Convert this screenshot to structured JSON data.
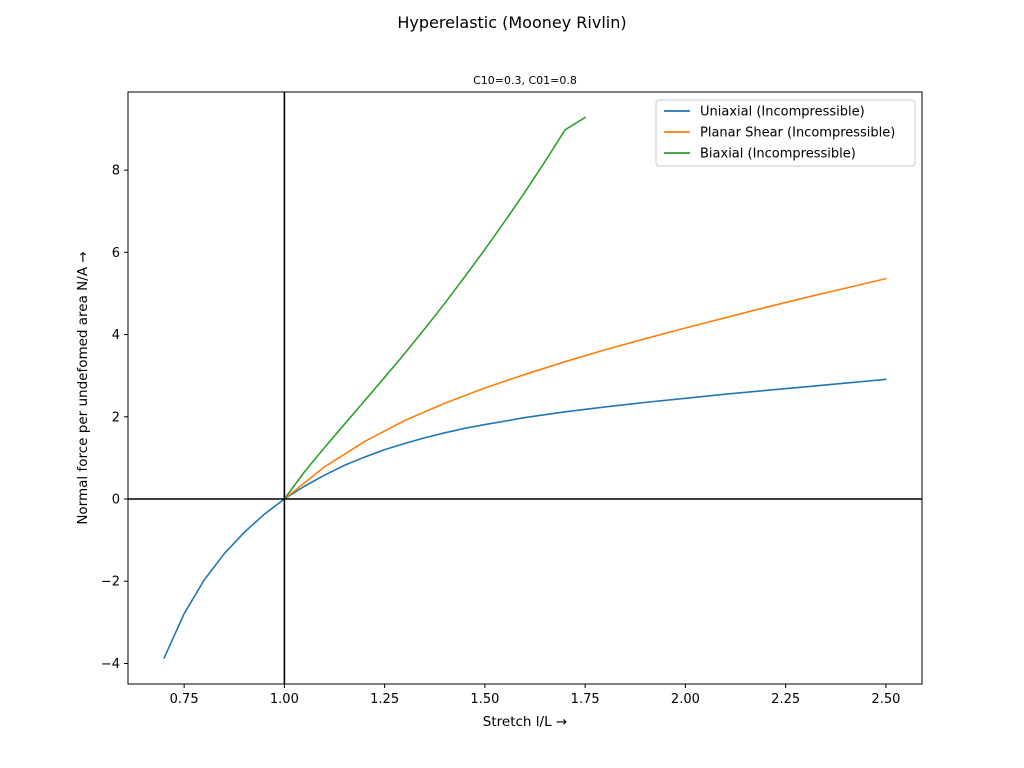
{
  "chart_data": {
    "type": "line",
    "suptitle": "Hyperelastic (Mooney Rivlin)",
    "title": "C10=0.3, C01=0.8",
    "xlabel": "Stretch l/L →",
    "ylabel": "Normal force per undefomed area N/A →",
    "xlim": [
      0.61,
      2.59
    ],
    "ylim": [
      -4.5,
      9.9
    ],
    "xticks": [
      0.75,
      1.0,
      1.25,
      1.5,
      1.75,
      2.0,
      2.25,
      2.5
    ],
    "xtick_labels": [
      "0.75",
      "1.00",
      "1.25",
      "1.50",
      "1.75",
      "2.00",
      "2.25",
      "2.50"
    ],
    "yticks": [
      -4,
      -2,
      0,
      2,
      4,
      6,
      8
    ],
    "ytick_labels": [
      "−4",
      "−2",
      "0",
      "2",
      "4",
      "6",
      "8"
    ],
    "grid": false,
    "reference_lines": {
      "x": 1.0,
      "y": 0,
      "color": "#000000"
    },
    "legend_position": "top-right",
    "series": [
      {
        "name": "Uniaxial (Incompressible)",
        "color": "#1f77b4",
        "x": [
          0.7,
          0.75,
          0.8,
          0.85,
          0.9,
          0.95,
          1.0,
          1.05,
          1.1,
          1.15,
          1.2,
          1.25,
          1.3,
          1.35,
          1.4,
          1.45,
          1.5,
          1.6,
          1.7,
          1.8,
          1.9,
          2.0,
          2.1,
          2.2,
          2.3,
          2.4,
          2.5
        ],
        "y": [
          -3.87,
          -2.79,
          -1.97,
          -1.33,
          -0.81,
          -0.37,
          0.0,
          0.31,
          0.58,
          0.82,
          1.02,
          1.2,
          1.35,
          1.49,
          1.61,
          1.72,
          1.81,
          1.98,
          2.12,
          2.24,
          2.35,
          2.45,
          2.55,
          2.64,
          2.73,
          2.82,
          2.91
        ]
      },
      {
        "name": "Planar Shear (Incompressible)",
        "color": "#ff7f0e",
        "x": [
          1.0,
          1.1,
          1.2,
          1.3,
          1.4,
          1.5,
          1.6,
          1.7,
          1.8,
          1.9,
          2.0,
          2.1,
          2.2,
          2.3,
          2.4,
          2.5
        ],
        "y": [
          0.0,
          0.78,
          1.4,
          1.91,
          2.33,
          2.7,
          3.03,
          3.34,
          3.63,
          3.9,
          4.16,
          4.41,
          4.66,
          4.9,
          5.13,
          5.36
        ]
      },
      {
        "name": "Biaxial (Incompressible)",
        "color": "#2ca02c",
        "x": [
          1.0,
          1.05,
          1.1,
          1.15,
          1.2,
          1.25,
          1.3,
          1.35,
          1.4,
          1.45,
          1.5,
          1.55,
          1.6,
          1.65,
          1.7,
          1.75
        ],
        "y": [
          0.0,
          0.66,
          1.25,
          1.82,
          2.39,
          2.96,
          3.54,
          4.14,
          4.76,
          5.41,
          6.07,
          6.76,
          7.47,
          8.21,
          8.98,
          9.28
        ]
      }
    ]
  }
}
